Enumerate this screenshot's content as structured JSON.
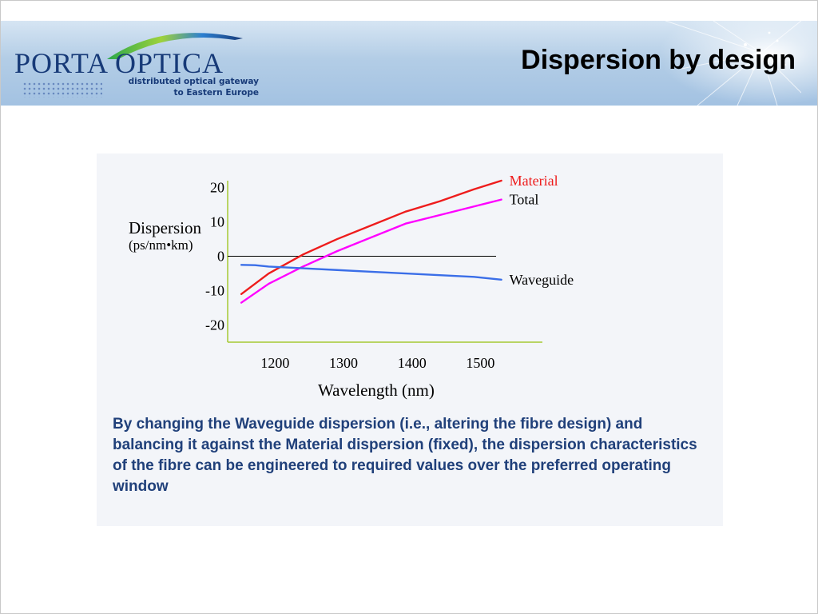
{
  "header": {
    "logo_text": "PORTA OPTICA",
    "logo_tagline_1": "distributed optical gateway",
    "logo_tagline_2": "to Eastern Europe",
    "title": "Dispersion by design"
  },
  "colors": {
    "header_band": "#b3cde6",
    "panel": "#f3f5f9",
    "material": "#ee1c1c",
    "total": "#ff00ff",
    "waveguide": "#3a6ee8",
    "axis": "#a6c933",
    "caption": "#20407a"
  },
  "chart_data": {
    "type": "line",
    "ylabel": "Dispersion",
    "yunit": "(ps/nm•km)",
    "xlabel": "Wavelength (nm)",
    "xlim": [
      1140,
      1600
    ],
    "ylim": [
      -25,
      22
    ],
    "xticks": [
      1200,
      1300,
      1400,
      1500
    ],
    "xtick_labels": [
      "1200",
      "1300",
      "1400",
      "1500"
    ],
    "yticks": [
      20,
      10,
      0,
      -10,
      -20
    ],
    "ytick_labels": [
      "20",
      "10",
      "0",
      "-10",
      "-20"
    ],
    "zero_line": true,
    "grid": false,
    "series": [
      {
        "name": "Material",
        "color": "#ee1c1c",
        "x": [
          1160,
          1200,
          1250,
          1300,
          1350,
          1400,
          1450,
          1500,
          1540
        ],
        "y": [
          -11,
          -5,
          0.5,
          5,
          9,
          13,
          16,
          19.5,
          22
        ]
      },
      {
        "name": "Total",
        "color": "#ff00ff",
        "x": [
          1160,
          1200,
          1250,
          1300,
          1350,
          1400,
          1450,
          1500,
          1540
        ],
        "y": [
          -13.5,
          -8,
          -3,
          1.5,
          5.5,
          9.5,
          12,
          14.5,
          16.5
        ]
      },
      {
        "name": "Waveguide",
        "color": "#3a6ee8",
        "x": [
          1160,
          1180,
          1200,
          1250,
          1300,
          1350,
          1400,
          1450,
          1500,
          1540
        ],
        "y": [
          -2.5,
          -2.6,
          -3,
          -3.5,
          -4,
          -4.5,
          -5,
          -5.5,
          -6,
          -6.8
        ]
      }
    ]
  },
  "caption": "By changing the Waveguide dispersion (i.e., altering the fibre design) and balancing it against the Material dispersion (fixed), the dispersion characteristics of the fibre can be engineered to required values over the preferred operating window"
}
